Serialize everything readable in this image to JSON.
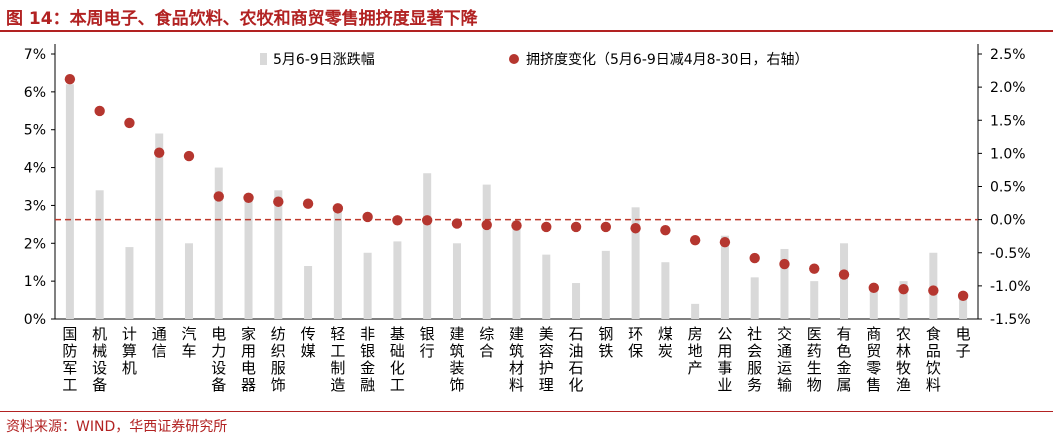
{
  "title": "图 14：本周电子、食品饮料、农牧和商贸零售拥挤度显著下降",
  "source": "资料来源：WIND，华西证券研究所",
  "colors": {
    "bar": "#d9d9d9",
    "dot": "#b5362f",
    "zero_line": "#c0392b",
    "title": "#b22222"
  },
  "chart_data": {
    "type": "bar",
    "categories": [
      "国防军工",
      "机械设备",
      "计算机",
      "通信",
      "汽车",
      "电力设备",
      "家用电器",
      "纺织服饰",
      "传媒",
      "轻工制造",
      "非银金融",
      "基础化工",
      "银行",
      "建筑装饰",
      "综合",
      "建筑材料",
      "美容护理",
      "石油石化",
      "钢铁",
      "环保",
      "煤炭",
      "房地产",
      "公用事业",
      "社会服务",
      "交通运输",
      "医药生物",
      "有色金属",
      "商贸零售",
      "农林牧渔",
      "食品饮料",
      "电子"
    ],
    "series": [
      {
        "name": "5月6-9日涨跌幅",
        "type": "bar",
        "axis": "left",
        "values": [
          6.2,
          3.4,
          1.9,
          4.9,
          2.0,
          4.0,
          3.3,
          3.4,
          1.4,
          2.9,
          1.75,
          2.05,
          3.85,
          2.0,
          3.55,
          2.6,
          1.7,
          0.95,
          1.8,
          2.95,
          1.5,
          0.4,
          2.2,
          1.1,
          1.85,
          1.0,
          2.0,
          0.85,
          1.0,
          1.75,
          0.55
        ]
      },
      {
        "name": "拥挤度变化（5月6-9日减4月8-30日，右轴）",
        "type": "scatter",
        "axis": "right",
        "values": [
          2.12,
          1.64,
          1.46,
          1.01,
          0.96,
          0.35,
          0.33,
          0.27,
          0.24,
          0.17,
          0.04,
          -0.01,
          -0.01,
          -0.06,
          -0.08,
          -0.09,
          -0.11,
          -0.11,
          -0.11,
          -0.13,
          -0.16,
          -0.31,
          -0.34,
          -0.58,
          -0.67,
          -0.74,
          -0.83,
          -1.03,
          -1.05,
          -1.07,
          -1.15
        ]
      }
    ],
    "y_left": {
      "min": 0,
      "max": 7,
      "step": 1,
      "tick_labels": [
        "0%",
        "1%",
        "2%",
        "3%",
        "4%",
        "5%",
        "6%",
        "7%"
      ]
    },
    "y_right": {
      "min": -1.5,
      "max": 2.5,
      "step": 0.5,
      "tick_labels": [
        "-1.5%",
        "-1.0%",
        "-0.5%",
        "0.0%",
        "0.5%",
        "1.0%",
        "1.5%",
        "2.0%",
        "2.5%"
      ]
    },
    "legend_position": "top"
  }
}
